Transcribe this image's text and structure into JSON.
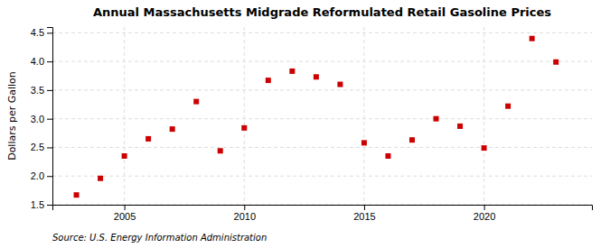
{
  "chart_data": {
    "type": "scatter",
    "title": "Annual Massachusetts Midgrade Reformulated Retail Gasoline Prices",
    "ylabel": "Dollars per Gallon",
    "source": "Source: U.S. Energy Information Administration",
    "x": [
      2003,
      2004,
      2005,
      2006,
      2007,
      2008,
      2009,
      2010,
      2011,
      2012,
      2013,
      2014,
      2015,
      2016,
      2017,
      2018,
      2019,
      2020,
      2021,
      2022,
      2023
    ],
    "values": [
      1.67,
      1.96,
      2.35,
      2.65,
      2.82,
      3.3,
      2.44,
      2.84,
      3.67,
      3.83,
      3.73,
      3.6,
      2.58,
      2.35,
      2.63,
      3.0,
      2.87,
      2.49,
      3.22,
      4.4,
      3.99
    ],
    "color": "#cc0000",
    "marker": "square",
    "xlim": [
      2002.0,
      2024.5
    ],
    "ylim": [
      1.5,
      4.6
    ],
    "xticks": [
      2005,
      2010,
      2015,
      2020
    ],
    "yticks": [
      1.5,
      {
        "value": 2.0,
        "label": "2.0"
      },
      2.5,
      {
        "value": 3.0,
        "label": "3.0"
      },
      3.5,
      {
        "value": 4.0,
        "label": "4.0"
      },
      4.5
    ],
    "grid": true
  }
}
